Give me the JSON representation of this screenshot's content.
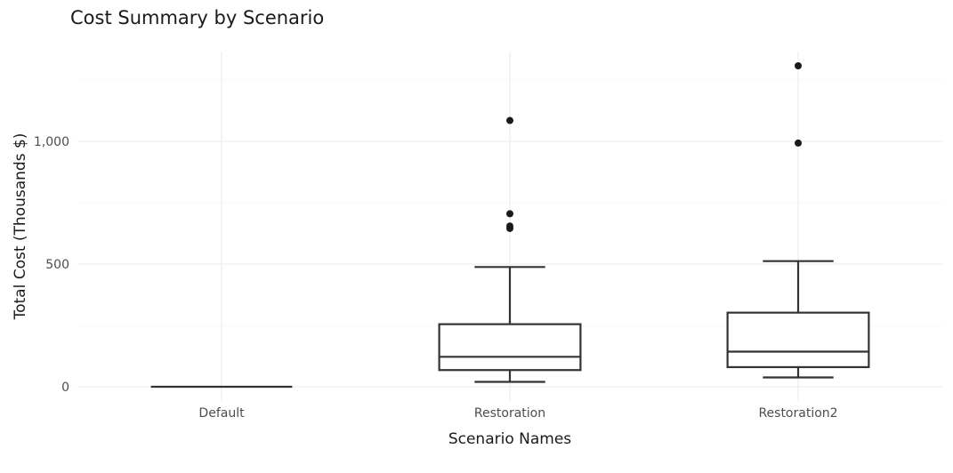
{
  "chart_data": {
    "type": "box",
    "title": "Cost Summary by Scenario",
    "xlabel": "Scenario Names",
    "ylabel": "Total Cost (Thousands $)",
    "ylim": [
      -55,
      1375
    ],
    "yticks": [
      0,
      500,
      1000
    ],
    "ytick_labels": [
      "0",
      "500",
      "1,000"
    ],
    "grid": true,
    "categories": [
      "Default",
      "Restoration",
      "Restoration2"
    ],
    "boxes": [
      {
        "category": "Default",
        "min": 0,
        "q1": 0,
        "median": 0,
        "q3": 0,
        "max": 0,
        "outliers": []
      },
      {
        "category": "Restoration",
        "min": 20,
        "q1": 68,
        "median": 122,
        "q3": 255,
        "max": 488,
        "outliers": [
          645,
          655,
          705,
          1085
        ]
      },
      {
        "category": "Restoration2",
        "min": 38,
        "q1": 80,
        "median": 143,
        "q3": 302,
        "max": 512,
        "outliers": [
          993,
          1308
        ]
      }
    ],
    "colors": {
      "box_stroke": "#333333",
      "box_fill": "#ffffff",
      "outlier": "#1a1a1a",
      "grid": "#ebebeb",
      "background": "#ffffff"
    }
  }
}
